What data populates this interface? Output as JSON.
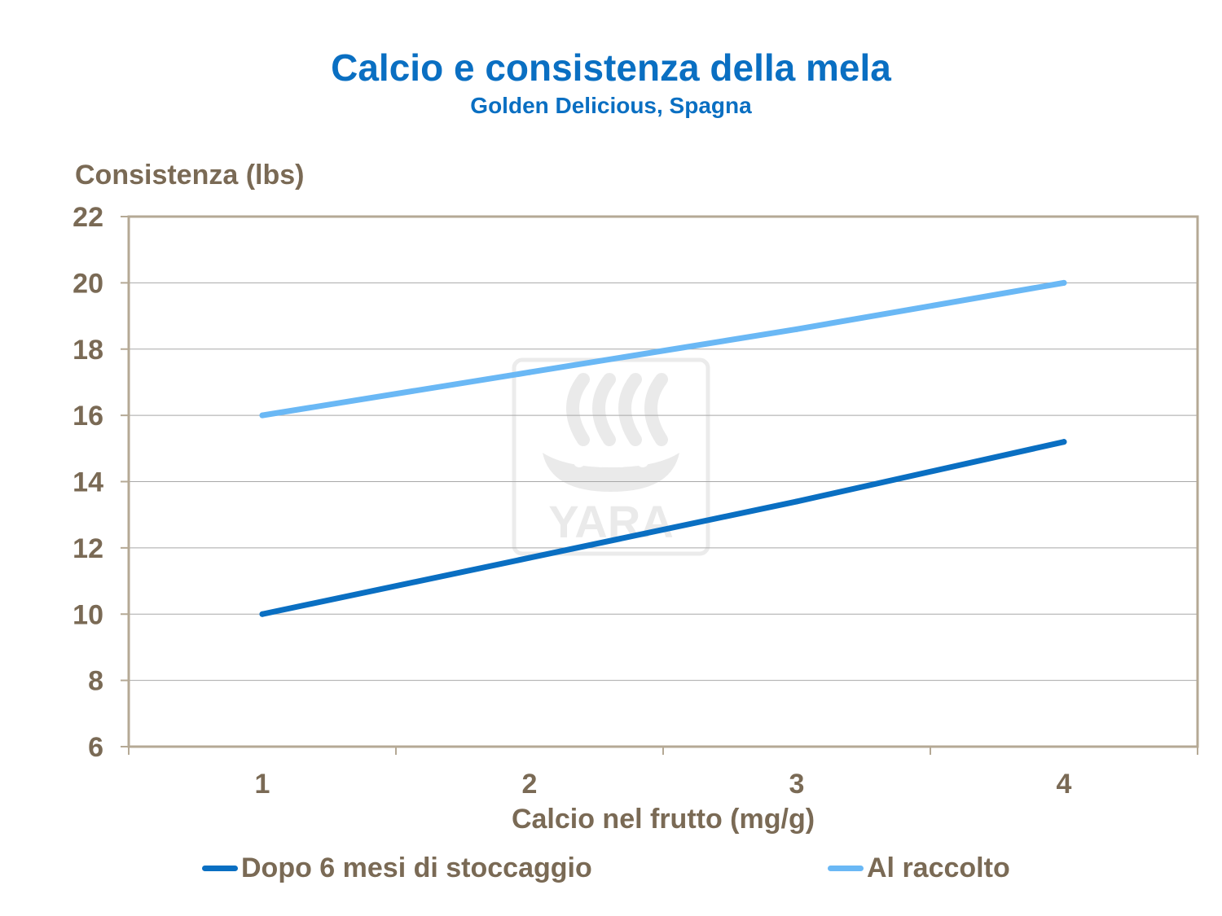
{
  "chart_data": {
    "type": "line",
    "title": "Calcio e consistenza della mela",
    "subtitle": "Golden Delicious, Spagna",
    "xlabel": "Calcio nel frutto (mg/g)",
    "ylabel": "Consistenza (lbs)",
    "x": [
      1,
      2,
      3,
      4
    ],
    "xlim": [
      0.5,
      4.5
    ],
    "ylim": [
      6,
      22
    ],
    "yticks": [
      6,
      8,
      10,
      12,
      14,
      16,
      18,
      20,
      22
    ],
    "xticks": [
      1,
      2,
      3,
      4
    ],
    "grid": "horizontal",
    "legend_position": "bottom",
    "series": [
      {
        "name": "Dopo 6 mesi di stoccaggio",
        "values": [
          10.0,
          11.7,
          13.4,
          15.2
        ],
        "color": "#0a6fc2"
      },
      {
        "name": "Al raccolto",
        "values": [
          16.0,
          17.3,
          18.6,
          20.0
        ],
        "color": "#6ab8f5"
      }
    ],
    "watermark": "YARA"
  }
}
